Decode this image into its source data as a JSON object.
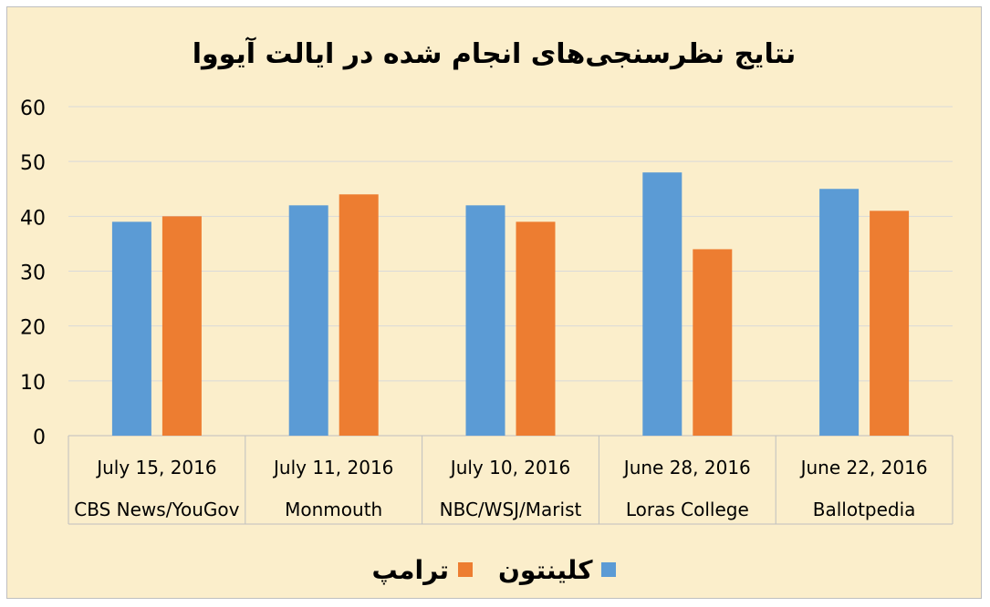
{
  "chart_data": {
    "type": "bar",
    "title": "نتایج نظرسنجی‌های انجام شده در ایالت آیووا",
    "categories": [
      {
        "date": "July 15, 2016",
        "pollster": "CBS News/YouGov"
      },
      {
        "date": "July 11, 2016",
        "pollster": "Monmouth"
      },
      {
        "date": "July 10, 2016",
        "pollster": "NBC/WSJ/Marist"
      },
      {
        "date": "June 28, 2016",
        "pollster": "Loras College"
      },
      {
        "date": "June 22, 2016",
        "pollster": "Ballotpedia"
      }
    ],
    "series": [
      {
        "name": "کلینتون",
        "color": "#5b9bd5",
        "values": [
          39,
          42,
          42,
          48,
          45
        ]
      },
      {
        "name": "ترامپ",
        "color": "#ed7d31",
        "values": [
          40,
          44,
          39,
          34,
          41
        ]
      }
    ],
    "ylim": [
      0,
      60
    ],
    "yticks": [
      0,
      10,
      20,
      30,
      40,
      50,
      60
    ],
    "grid": true,
    "legend_position": "bottom"
  }
}
